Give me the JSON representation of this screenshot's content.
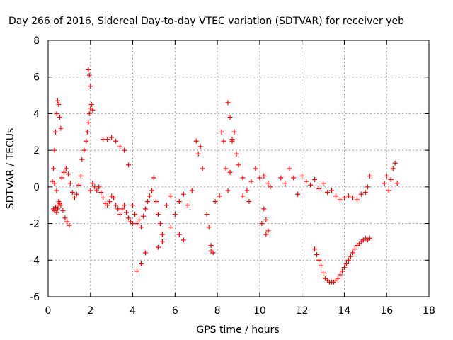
{
  "chart_data": {
    "type": "scatter",
    "title": "Day 266 of 2016, Sidereal Day-to-day VTEC variation (SDTVAR) for receiver yeb",
    "xlabel": "GPS time / hours",
    "ylabel": "SDTVAR / TECUs",
    "xlim": [
      0,
      18
    ],
    "ylim": [
      -6,
      8
    ],
    "xticks": [
      "0",
      "2",
      "4",
      "6",
      "8",
      "10",
      "12",
      "14",
      "16",
      "18"
    ],
    "yticks": [
      "-6",
      "-4",
      "-2",
      "0",
      "2",
      "4",
      "6",
      "8"
    ],
    "grid": true,
    "legend": "none",
    "marker": "+",
    "series": [
      {
        "name": "SDTVAR",
        "color": "#ff0000",
        "x": [
          0.2,
          0.25,
          0.3,
          0.35,
          0.4,
          0.45,
          0.5,
          0.55,
          0.6,
          0.25,
          0.3,
          0.35,
          0.4,
          0.45,
          0.5,
          0.55,
          0.3,
          0.4,
          0.5,
          0.6,
          0.7,
          0.8,
          0.9,
          1.0,
          0.65,
          0.75,
          0.85,
          0.95,
          1.05,
          1.15,
          1.25,
          1.35,
          1.45,
          1.55,
          1.6,
          1.7,
          1.8,
          1.85,
          1.9,
          1.95,
          2.0,
          2.05,
          2.1,
          2.0,
          2.1,
          2.2,
          2.3,
          2.4,
          2.5,
          2.6,
          2.7,
          2.8,
          2.9,
          3.0,
          3.1,
          3.2,
          3.3,
          3.4,
          3.5,
          3.6,
          3.7,
          3.8,
          3.9,
          4.0,
          2.6,
          2.8,
          3.0,
          3.2,
          3.4,
          3.6,
          3.8,
          4.0,
          4.1,
          4.2,
          4.3,
          4.4,
          4.5,
          4.6,
          4.7,
          4.8,
          4.9,
          5.0,
          5.1,
          5.2,
          5.3,
          5.4,
          5.6,
          5.8,
          6.0,
          6.2,
          6.4,
          6.6,
          6.8,
          7.0,
          7.1,
          7.2,
          7.3,
          7.5,
          7.7,
          7.9,
          8.1,
          8.2,
          8.3,
          8.4,
          8.5,
          8.6,
          8.7,
          8.8,
          8.9,
          9.0,
          9.2,
          9.4,
          9.6,
          9.8,
          10.0,
          10.2,
          10.4,
          10.5,
          10.2,
          10.3,
          10.4,
          11.0,
          11.2,
          11.4,
          11.6,
          11.8,
          12.0,
          12.2,
          12.4,
          12.6,
          12.8,
          13.0,
          13.2,
          13.4,
          13.6,
          13.8,
          14.0,
          14.2,
          14.4,
          14.6,
          14.8,
          15.0,
          15.1,
          15.2,
          12.6,
          12.7,
          12.8,
          12.9,
          13.0,
          13.1,
          13.2,
          13.3,
          13.4,
          13.5,
          13.6,
          13.7,
          13.8,
          13.9,
          14.0,
          14.1,
          14.2,
          14.3,
          14.4,
          14.5,
          14.6,
          14.7,
          14.8,
          14.9,
          15.0,
          15.1,
          15.2,
          15.9,
          16.0,
          16.1,
          16.2,
          16.3,
          16.4,
          16.5,
          4.2,
          4.4,
          4.6,
          5.2,
          5.4,
          5.8,
          6.2,
          6.4,
          7.6,
          7.7,
          7.8,
          8.5,
          8.6,
          8.7,
          9.2,
          9.5,
          10.1,
          10.3,
          1.9,
          2.0,
          1.95
        ],
        "y": [
          0.3,
          1.0,
          2.0,
          3.0,
          4.0,
          4.7,
          4.5,
          3.8,
          3.2,
          -1.2,
          -1.3,
          -1.1,
          -1.4,
          -1.2,
          -1.0,
          -0.9,
          0.2,
          -0.2,
          -0.8,
          -1.0,
          -1.3,
          -1.7,
          -1.9,
          -2.1,
          0.5,
          0.8,
          1.0,
          0.7,
          0.2,
          -0.3,
          -0.6,
          -0.4,
          0.1,
          0.6,
          1.5,
          2.0,
          2.5,
          3.0,
          3.5,
          4.0,
          4.3,
          4.5,
          4.2,
          -0.2,
          0.2,
          0.0,
          -0.2,
          0.0,
          -0.3,
          -0.6,
          -0.9,
          -1.0,
          -0.8,
          -0.5,
          -0.6,
          -1.0,
          -1.2,
          -1.5,
          -1.2,
          -1.0,
          -1.4,
          -1.7,
          -1.9,
          -2.0,
          2.6,
          2.6,
          2.7,
          2.5,
          2.2,
          2.0,
          1.2,
          -1.0,
          -1.5,
          -2.0,
          -1.8,
          -2.2,
          -1.6,
          -1.2,
          -0.8,
          -0.5,
          -0.2,
          0.5,
          -0.8,
          -1.5,
          -2.0,
          -3.0,
          -1.0,
          -0.5,
          -1.5,
          -0.8,
          -0.4,
          -1.0,
          -0.2,
          2.5,
          1.8,
          2.2,
          1.0,
          -1.5,
          -3.5,
          -0.8,
          -0.5,
          3.0,
          2.5,
          1.0,
          -0.2,
          0.8,
          2.5,
          3.0,
          1.8,
          1.2,
          0.5,
          -0.2,
          0.3,
          1.0,
          0.5,
          0.6,
          0.2,
          0.0,
          -1.2,
          -1.8,
          -2.4,
          0.5,
          0.2,
          1.0,
          0.5,
          -0.4,
          0.6,
          0.3,
          0.1,
          0.4,
          -0.1,
          0.2,
          -0.3,
          -0.2,
          -0.5,
          -0.7,
          -0.6,
          -0.5,
          -0.6,
          -0.7,
          -0.4,
          -0.3,
          0.0,
          0.6,
          -3.4,
          -3.7,
          -4.0,
          -4.3,
          -4.7,
          -5.0,
          -5.1,
          -5.2,
          -5.2,
          -5.2,
          -5.1,
          -5.0,
          -4.8,
          -4.6,
          -4.4,
          -4.2,
          -4.0,
          -3.8,
          -3.6,
          -3.4,
          -3.2,
          -3.1,
          -3.0,
          -2.9,
          -2.8,
          -2.9,
          -2.8,
          0.2,
          0.6,
          -0.2,
          0.4,
          1.0,
          1.3,
          0.2,
          -4.6,
          -4.2,
          -3.6,
          -3.3,
          -2.6,
          -2.2,
          -2.6,
          -2.9,
          -2.2,
          -3.2,
          -3.6,
          4.6,
          3.8,
          2.6,
          -0.5,
          -0.8,
          -2.0,
          -2.6,
          6.4,
          5.5,
          6.1
        ]
      }
    ]
  }
}
